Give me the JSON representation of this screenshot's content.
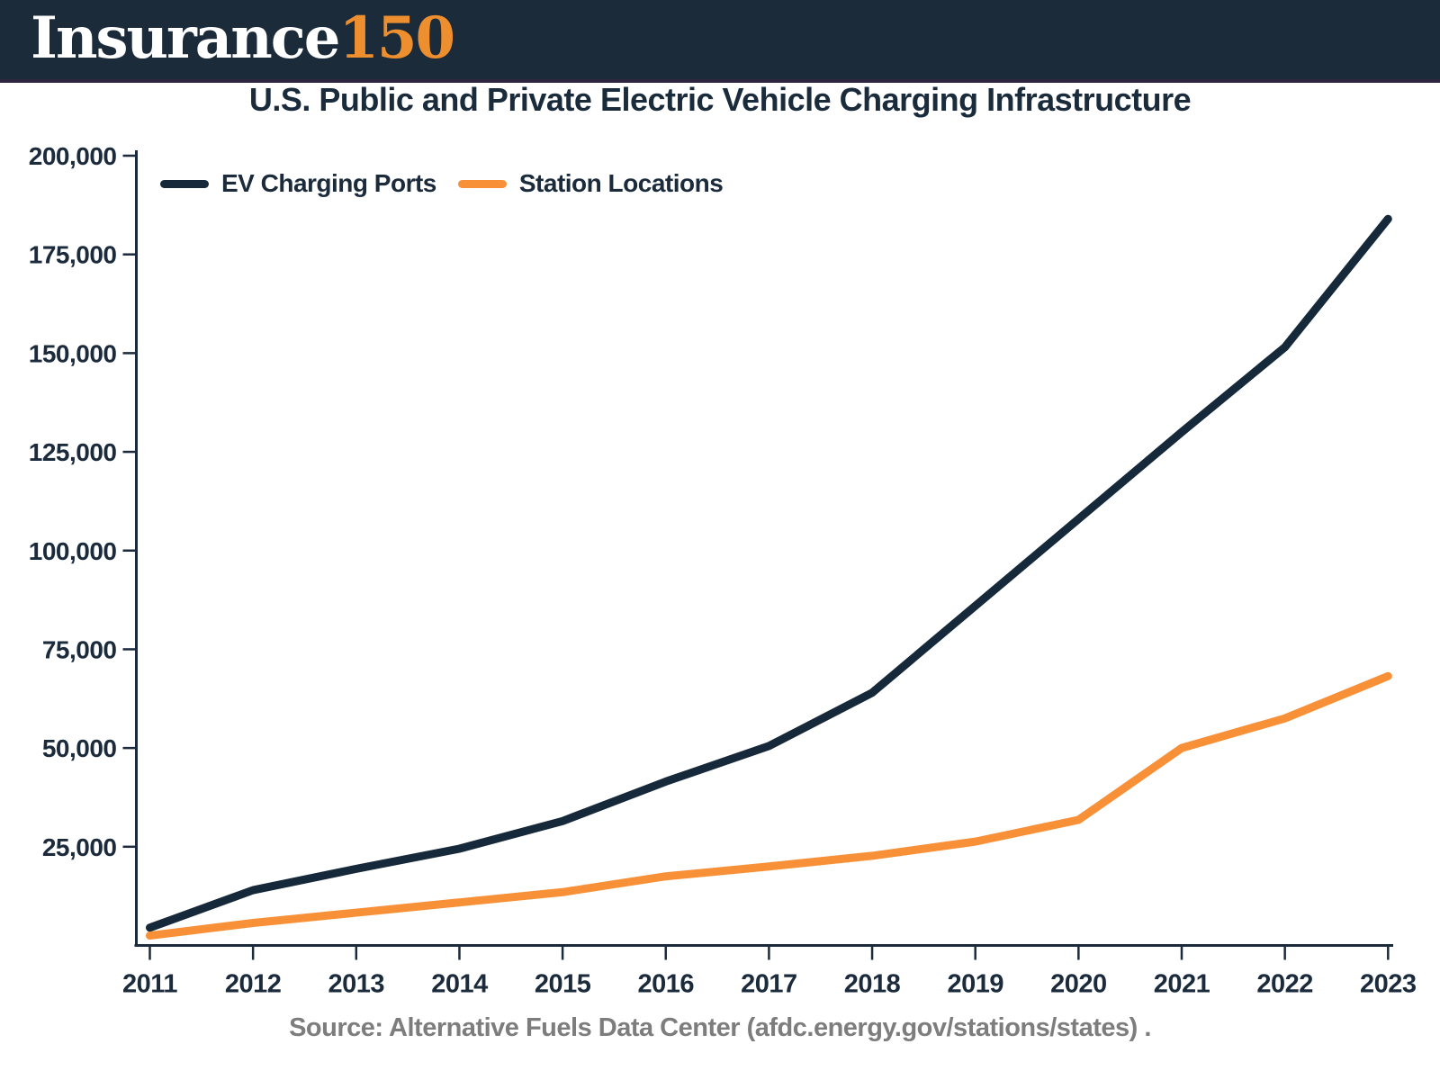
{
  "header": {
    "logo_text": "Insurance",
    "logo_accent": "150"
  },
  "title": "U.S. Public and Private Electric Vehicle Charging Infrastructure",
  "source": "Source: Alternative Fuels Data Center (afdc.energy.gov/stations/states) .",
  "colors": {
    "header_bg": "#1C2B3A",
    "title_navy": "#1A2B3C",
    "axis_navy": "#1B2B3C",
    "line_navy": "#16293A",
    "line_orange": "#F89038",
    "logo_accent_orange": "#EE8F2F",
    "source_gray": "#7D7D7D"
  },
  "chart_data": {
    "type": "line",
    "title": "U.S. Public and Private Electric Vehicle Charging Infrastructure",
    "categories": [
      "2011",
      "2012",
      "2013",
      "2014",
      "2015",
      "2016",
      "2017",
      "2018",
      "2019",
      "2020",
      "2021",
      "2022",
      "2023"
    ],
    "series": [
      {
        "name": "EV Charging Ports",
        "color": "#16293A",
        "values": [
          4500,
          14000,
          19400,
          24500,
          31500,
          41500,
          50500,
          64000,
          86000,
          108000,
          130000,
          151500,
          184000
        ]
      },
      {
        "name": "Station Locations",
        "color": "#F89038",
        "values": [
          2500,
          5700,
          8300,
          10900,
          13500,
          17500,
          20000,
          22700,
          26300,
          31800,
          50000,
          57500,
          68200
        ]
      }
    ],
    "xlabel": "",
    "ylabel": "",
    "ylim": [
      0,
      200000
    ],
    "y_tick_step": 25000,
    "y_tick_labels": [
      "25,000",
      "50,000",
      "75,000",
      "100,000",
      "125,000",
      "150,000",
      "175,000",
      "200,000"
    ],
    "grid": false,
    "legend_position": "top-left"
  }
}
